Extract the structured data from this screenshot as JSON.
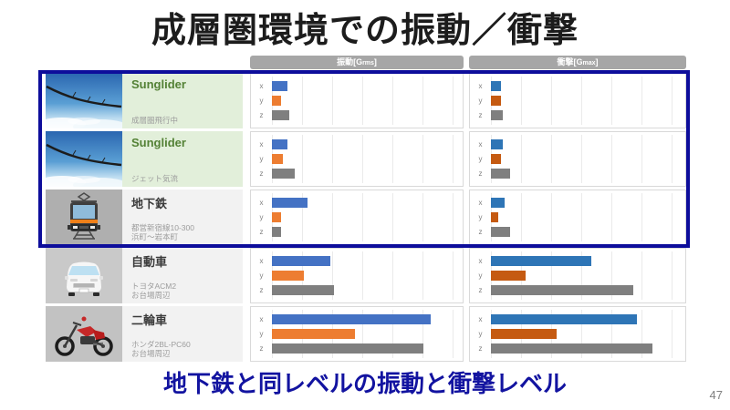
{
  "slide": {
    "title": "成層圏環境での振動／衝撃",
    "footer_message": "地下鉄と同レベルの振動と衝撃レベル",
    "page_number": "47"
  },
  "headers": {
    "vibration": {
      "main": "振動[G",
      "sub": "rms",
      "suffix": "]"
    },
    "shock": {
      "main": "衝撃[G",
      "sub": "max",
      "suffix": "]"
    }
  },
  "rows": [
    {
      "name": "Sunglider",
      "subtitle1": "成層圏飛行中",
      "subtitle2": "",
      "image": "sunglider-photo"
    },
    {
      "name": "Sunglider",
      "subtitle1": "ジェット気流",
      "subtitle2": "",
      "image": "sunglider-photo"
    },
    {
      "name": "地下鉄",
      "subtitle1": "都営新宿線10-300",
      "subtitle2": "浜町〜岩本町",
      "image": "subway-train-icon"
    },
    {
      "name": "自動車",
      "subtitle1": "トヨタACM2",
      "subtitle2": "お台場周辺",
      "image": "car-icon"
    },
    {
      "name": "二輪車",
      "subtitle1": "ホンダ2BL-PC60",
      "subtitle2": "お台場周辺",
      "image": "motorcycle-icon"
    }
  ],
  "colors": {
    "highlight_border_navy": "#0D0D9B",
    "footer_text_navy": "#1213A0",
    "header_pill_gray": "#A6A6A6",
    "label_bg_green": "#E2EFDA",
    "label_bg_gray": "#F2F2F2",
    "name_green": "#538135"
  },
  "chart_data": [
    {
      "type": "bar",
      "title": "振動[Grms]",
      "orientation": "horizontal",
      "categories": [
        "Sunglider（成層圏飛行中）",
        "Sunglider（ジェット気流）",
        "地下鉄（都営新宿線10-300 浜町〜岩本町）",
        "自動車（トヨタACM2 お台場周辺）",
        "二輪車（ホンダ2BL-PC60 お台場周辺）"
      ],
      "series": [
        {
          "name": "x",
          "color": "#4472C4",
          "values_pct_of_axis": [
            8,
            8,
            19,
            31,
            84
          ]
        },
        {
          "name": "y",
          "color": "#ED7D31",
          "values_pct_of_axis": [
            5,
            6,
            5,
            17,
            44
          ]
        },
        {
          "name": "z",
          "color": "#7F7F7F",
          "values_pct_of_axis": [
            9,
            12,
            5,
            33,
            80
          ]
        }
      ],
      "value_axis_ticks": "none visible; values estimated as percent of plotted axis width",
      "grid": true,
      "legend": false
    },
    {
      "type": "bar",
      "title": "衝撃[Gmax]",
      "orientation": "horizontal",
      "categories": [
        "Sunglider（成層圏飛行中）",
        "Sunglider（ジェット気流）",
        "地下鉄（都営新宿線10-300 浜町〜岩本町）",
        "自動車（トヨタACM2 お台場周辺）",
        "二輪車（ホンダ2BL-PC60 お台場周辺）"
      ],
      "series": [
        {
          "name": "x",
          "color": "#2E75B6",
          "values_pct_of_axis": [
            5,
            6,
            7,
            52,
            76
          ]
        },
        {
          "name": "y",
          "color": "#C55A11",
          "values_pct_of_axis": [
            5,
            5,
            4,
            18,
            34
          ]
        },
        {
          "name": "z",
          "color": "#7F7F7F",
          "values_pct_of_axis": [
            6,
            10,
            10,
            74,
            84
          ]
        }
      ],
      "value_axis_ticks": "none visible; values estimated as percent of plotted axis width",
      "grid": true,
      "legend": false
    }
  ]
}
